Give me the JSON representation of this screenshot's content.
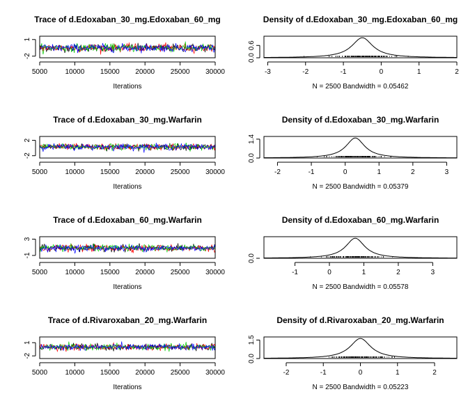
{
  "chart_data": [
    {
      "type": "line",
      "kind": "trace",
      "title": "Trace of d.Edoxaban_30_mg.Edoxaban_60_mg",
      "xlabel": "Iterations",
      "xlim": [
        5000,
        30000
      ],
      "ylim": [
        -2.3,
        1.6
      ],
      "xticks": [
        5000,
        10000,
        15000,
        20000,
        25000,
        30000
      ],
      "yticks": [
        -2,
        1
      ],
      "chains": 4,
      "chain_colors": [
        "#000000",
        "#ff0000",
        "#00cc00",
        "#0000ff"
      ],
      "center": -0.5,
      "spread": 0.35
    },
    {
      "type": "area",
      "kind": "density",
      "title": "Density of d.Edoxaban_30_mg.Edoxaban_60_mg",
      "xlim": [
        -3.1,
        2.0
      ],
      "ylim": [
        0,
        1.05
      ],
      "xticks": [
        -3,
        -2,
        -1,
        0,
        1,
        2
      ],
      "yticks": [
        0.0,
        0.6
      ],
      "mode": -0.5,
      "peak": 1.0,
      "footer": "N = 2500   Bandwidth = 0.05462"
    },
    {
      "type": "line",
      "kind": "trace",
      "title": "Trace of d.Edoxaban_30_mg.Warfarin",
      "xlabel": "Iterations",
      "xlim": [
        5000,
        30000
      ],
      "ylim": [
        -2.6,
        3.0
      ],
      "xticks": [
        5000,
        10000,
        15000,
        20000,
        25000,
        30000
      ],
      "yticks": [
        -2,
        2
      ],
      "chains": 4,
      "chain_colors": [
        "#000000",
        "#ff0000",
        "#00cc00",
        "#0000ff"
      ],
      "center": 0.3,
      "spread": 0.4
    },
    {
      "type": "area",
      "kind": "density",
      "title": "Density of d.Edoxaban_30_mg.Warfarin",
      "xlim": [
        -2.4,
        3.3
      ],
      "ylim": [
        0,
        1.6
      ],
      "xticks": [
        -2,
        -1,
        0,
        1,
        2,
        3
      ],
      "yticks": [
        0.0,
        1.4
      ],
      "mode": 0.3,
      "peak": 1.0,
      "footer": "N = 2500   Bandwidth = 0.05379"
    },
    {
      "type": "line",
      "kind": "trace",
      "title": "Trace of d.Edoxaban_60_mg.Warfarin",
      "xlabel": "Iterations",
      "xlim": [
        5000,
        30000
      ],
      "ylim": [
        -1.7,
        3.6
      ],
      "xticks": [
        5000,
        10000,
        15000,
        20000,
        25000,
        30000
      ],
      "yticks": [
        -1,
        3
      ],
      "chains": 4,
      "chain_colors": [
        "#000000",
        "#ff0000",
        "#00cc00",
        "#0000ff"
      ],
      "center": 0.8,
      "spread": 0.4
    },
    {
      "type": "area",
      "kind": "density",
      "title": "Density of d.Edoxaban_60_mg.Warfarin",
      "xlim": [
        -1.9,
        3.7
      ],
      "ylim": [
        0,
        1.1
      ],
      "xticks": [
        -1,
        0,
        1,
        2,
        3
      ],
      "yticks": [
        0.0
      ],
      "mode": 0.75,
      "peak": 1.0,
      "footer": "N = 2500   Bandwidth = 0.05578"
    },
    {
      "type": "line",
      "kind": "trace",
      "title": "Trace of d.Rivaroxaban_20_mg.Warfarin",
      "xlabel": "Iterations",
      "xlim": [
        5000,
        30000
      ],
      "ylim": [
        -2.6,
        2.3
      ],
      "xticks": [
        5000,
        10000,
        15000,
        20000,
        25000,
        30000
      ],
      "yticks": [
        -2,
        1
      ],
      "chains": 4,
      "chain_colors": [
        "#000000",
        "#ff0000",
        "#00cc00",
        "#0000ff"
      ],
      "center": 0.0,
      "spread": 0.35
    },
    {
      "type": "area",
      "kind": "density",
      "title": "Density of d.Rivaroxaban_20_mg.Warfarin",
      "xlim": [
        -2.6,
        2.6
      ],
      "ylim": [
        0,
        1.75
      ],
      "xticks": [
        -2,
        -1,
        0,
        1,
        2
      ],
      "yticks": [
        0.0,
        1.5
      ],
      "mode": 0.0,
      "peak": 1.0,
      "footer": "N = 2500   Bandwidth = 0.05223"
    }
  ]
}
